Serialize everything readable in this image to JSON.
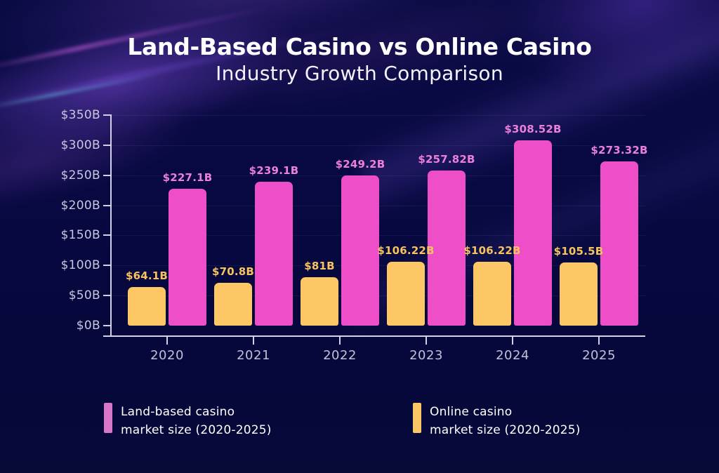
{
  "title": {
    "line1": "Land-Based Casino vs Online Casino",
    "line2": "Industry Growth Comparison"
  },
  "chart_data": {
    "type": "bar",
    "title": "Land-Based Casino vs Online Casino Industry Growth Comparison",
    "categories": [
      "2020",
      "2021",
      "2022",
      "2023",
      "2024",
      "2025"
    ],
    "series": [
      {
        "name": "Online casino market size (2020-2025)",
        "color": "#fcc764",
        "label_color": "#f6c35f",
        "values": [
          64.1,
          70.8,
          81,
          106.22,
          106.22,
          105.5
        ],
        "labels": [
          "$64.1B",
          "$70.8B",
          "$81B",
          "$106.22B",
          "$106.22B",
          "$105.5B"
        ]
      },
      {
        "name": "Land-based casino market size (2020-2025)",
        "color": "#ee4fc9",
        "label_color": "#ec7fd9",
        "values": [
          227.1,
          239.1,
          249.2,
          257.82,
          308.52,
          273.32
        ],
        "labels": [
          "$227.1B",
          "$239.1B",
          "$249.2B",
          "$257.82B",
          "$308.52B",
          "$273.32B"
        ]
      }
    ],
    "xlabel": "",
    "ylabel": "",
    "y_ticks": [
      "$350B",
      "$300B",
      "$250B",
      "$200B",
      "$150B",
      "$100B",
      "$50B",
      "$0B"
    ],
    "ylim": [
      0,
      350
    ],
    "y_step": 50,
    "grid": "faint-horizontal",
    "legend_position": "bottom"
  },
  "legend": {
    "items": [
      {
        "line1": "Land-based casino",
        "line2": "market size (2020-2025)",
        "color": "#d876c8"
      },
      {
        "line1": "Online casino",
        "line2": "market size (2020-2025)",
        "color": "#fbc766"
      }
    ]
  },
  "colors": {
    "background": "#070940",
    "axis": "#d3d1e8",
    "tick_text": "#c9c7df",
    "title_text": "#ffffff"
  }
}
